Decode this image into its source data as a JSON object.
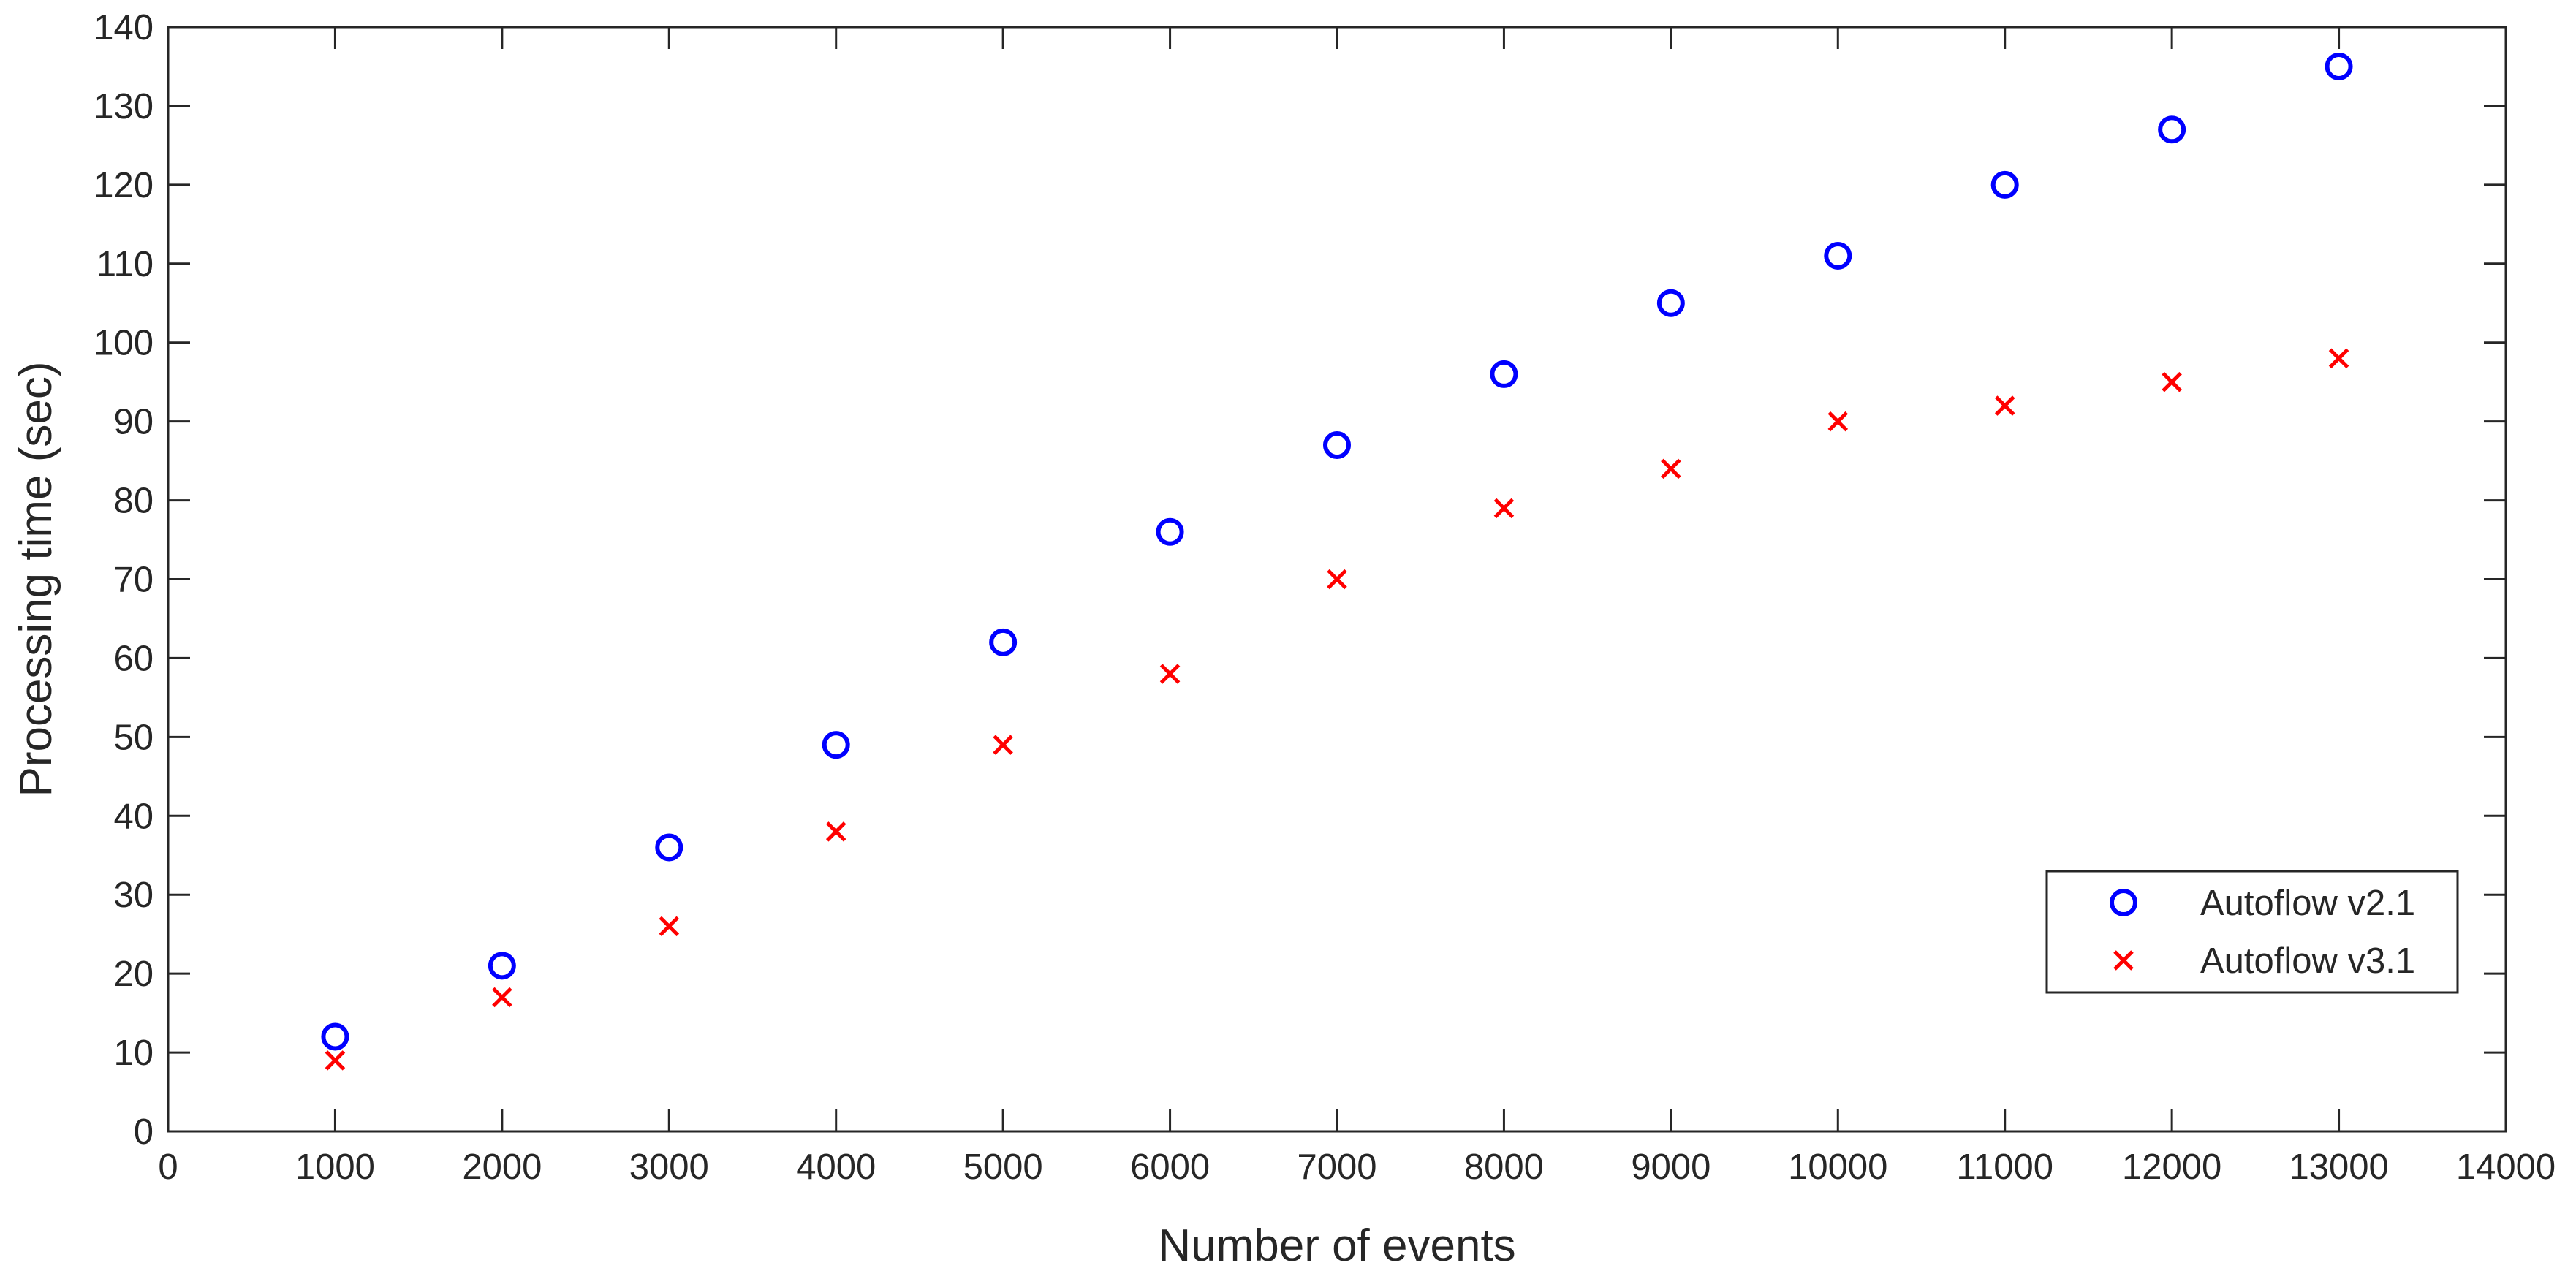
{
  "chart_data": {
    "type": "scatter",
    "title": "",
    "xlabel": "Number of events",
    "ylabel": "Processing time (sec)",
    "xlim": [
      0,
      14000
    ],
    "ylim": [
      0,
      140
    ],
    "xticks": [
      0,
      1000,
      2000,
      3000,
      4000,
      5000,
      6000,
      7000,
      8000,
      9000,
      10000,
      11000,
      12000,
      13000,
      14000
    ],
    "yticks": [
      0,
      10,
      20,
      30,
      40,
      50,
      60,
      70,
      80,
      90,
      100,
      110,
      120,
      130,
      140
    ],
    "grid": false,
    "legend_position": "lower-right",
    "series": [
      {
        "name": "Autoflow v2.1",
        "marker": "circle",
        "color": "#0000ff",
        "x": [
          1000,
          2000,
          3000,
          4000,
          5000,
          6000,
          7000,
          8000,
          9000,
          10000,
          11000,
          12000,
          13000
        ],
        "y": [
          12,
          21,
          36,
          49,
          62,
          76,
          87,
          96,
          105,
          111,
          120,
          127,
          135
        ]
      },
      {
        "name": "Autoflow v3.1",
        "marker": "x",
        "color": "#ff0000",
        "x": [
          1000,
          2000,
          3000,
          4000,
          5000,
          6000,
          7000,
          8000,
          9000,
          10000,
          11000,
          12000,
          13000
        ],
        "y": [
          9,
          17,
          26,
          38,
          49,
          58,
          70,
          79,
          84,
          90,
          92,
          95,
          98
        ]
      }
    ]
  }
}
